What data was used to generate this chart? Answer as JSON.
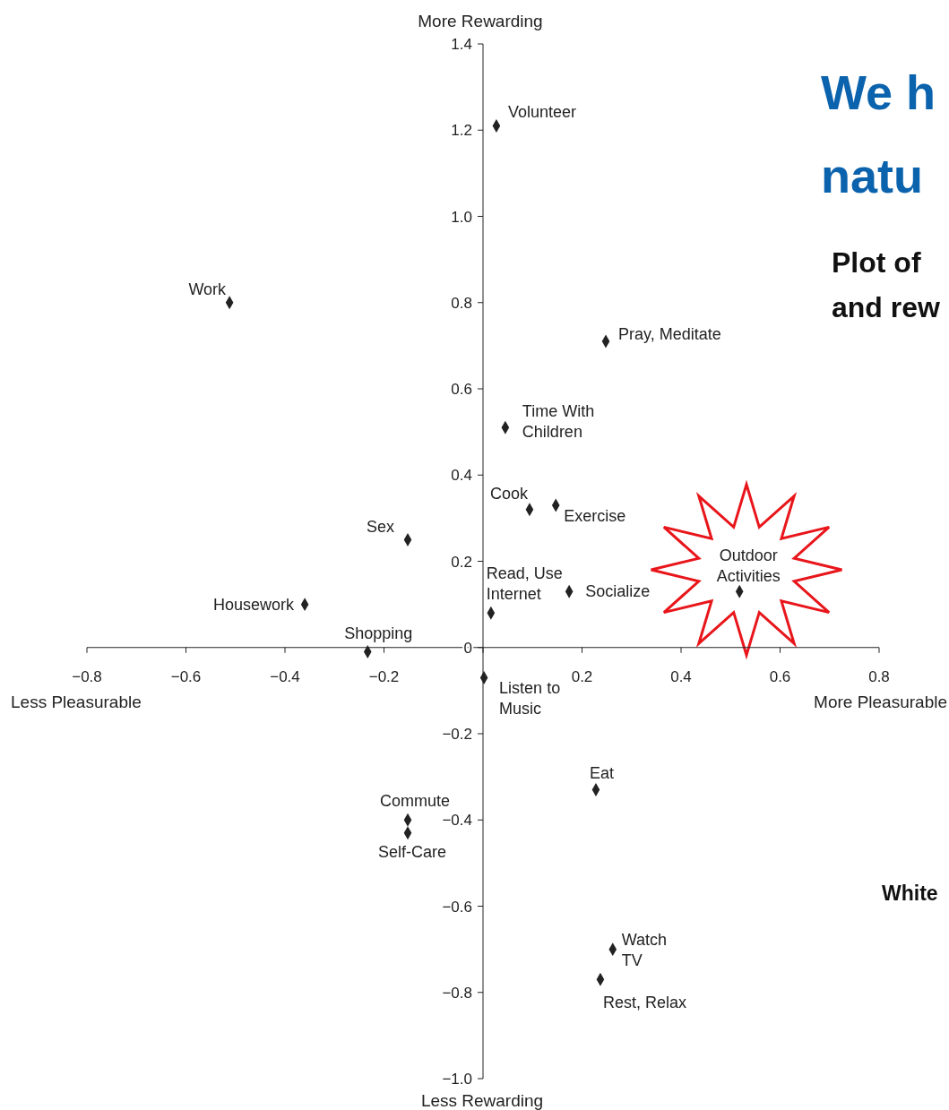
{
  "chart_data": {
    "type": "scatter",
    "title": "We h",
    "xlabel": "More Pleasurable",
    "ylabel": "More Rewarding",
    "marker": "diamond",
    "xlim": [
      -0.8,
      0.8
    ],
    "ylim": [
      -1.0,
      1.4
    ],
    "xticks": [
      {
        "value": -0.8,
        "label": "−0.8"
      },
      {
        "value": -0.6,
        "label": "−0.6"
      },
      {
        "value": -0.4,
        "label": "−0.4"
      },
      {
        "value": -0.2,
        "label": "−0.2"
      },
      {
        "value": 0,
        "label": null
      },
      0.2,
      0.4,
      0.6,
      0.8
    ],
    "yticks": [
      {
        "value": -1.0,
        "label": "−1.0"
      },
      {
        "value": -0.8,
        "label": "−0.8"
      },
      {
        "value": -0.6,
        "label": "−0.6"
      },
      {
        "value": -0.4,
        "label": "−0.4"
      },
      {
        "value": -0.2,
        "label": "−0.2"
      },
      0,
      0.2,
      0.4,
      0.6,
      0.8,
      {
        "value": 1.0,
        "label": "1.0"
      },
      1.2,
      1.4
    ],
    "series": [
      {
        "color": "#222222",
        "x": [
          0.027,
          -0.512,
          0.248,
          0.045,
          0.094,
          0.147,
          -0.152,
          0.016,
          0.174,
          0.518,
          -0.36,
          -0.233,
          0.002,
          0.228,
          -0.152,
          -0.152,
          0.262,
          0.237
        ],
        "values": [
          1.21,
          0.8,
          0.71,
          0.51,
          0.32,
          0.33,
          0.25,
          0.08,
          0.13,
          0.13,
          0.1,
          -0.01,
          -0.07,
          -0.33,
          -0.4,
          -0.43,
          -0.7,
          -0.77
        ]
      }
    ],
    "annotations": [
      {
        "text": "Volunteer",
        "x": 0.027,
        "y": 1.21
      },
      {
        "text": "Work",
        "x": -0.512,
        "y": 0.8
      },
      {
        "text": "Pray, Meditate",
        "x": 0.248,
        "y": 0.71
      },
      {
        "text": "Time With Children",
        "x": 0.045,
        "y": 0.51
      },
      {
        "text": "Cook",
        "x": 0.094,
        "y": 0.32
      },
      {
        "text": "Exercise",
        "x": 0.147,
        "y": 0.33
      },
      {
        "text": "Sex",
        "x": -0.152,
        "y": 0.25
      },
      {
        "text": "Read, Use Internet",
        "x": 0.016,
        "y": 0.08
      },
      {
        "text": "Socialize",
        "x": 0.174,
        "y": 0.13
      },
      {
        "text": "Outdoor Activities",
        "x": 0.518,
        "y": 0.13
      },
      {
        "text": "Housework",
        "x": -0.36,
        "y": 0.1
      },
      {
        "text": "Shopping",
        "x": -0.233,
        "y": -0.01
      },
      {
        "text": "Listen to Music",
        "x": 0.002,
        "y": -0.07
      },
      {
        "text": "Eat",
        "x": 0.228,
        "y": -0.33
      },
      {
        "text": "Commute",
        "x": -0.152,
        "y": -0.4
      },
      {
        "text": "Self-Care",
        "x": -0.152,
        "y": -0.43
      },
      {
        "text": "Watch TV",
        "x": 0.262,
        "y": -0.7
      },
      {
        "text": "Rest, Relax",
        "x": 0.237,
        "y": -0.77
      },
      "Less Pleasurable",
      "Less Rewarding",
      "natu",
      "Plot of",
      "and rew",
      "White"
    ]
  }
}
